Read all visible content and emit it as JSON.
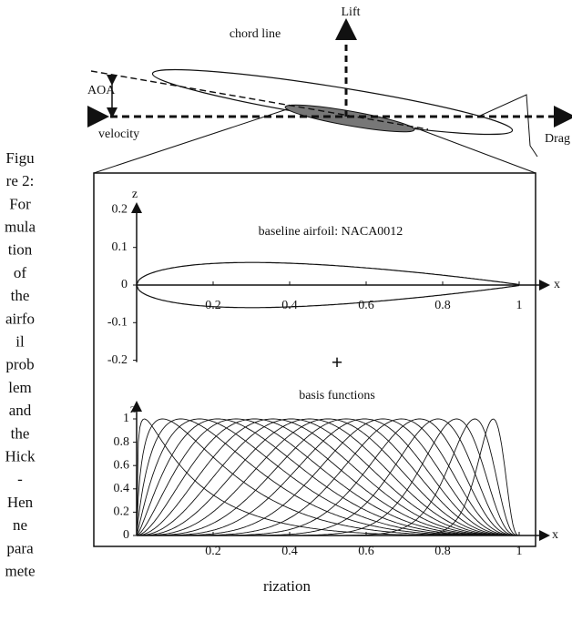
{
  "caption": {
    "fragments": [
      "Figu",
      "re 2:",
      "For",
      "mula",
      "tion",
      "of",
      "the",
      "airfo",
      "il",
      "prob",
      "lem",
      "and",
      "the",
      "Hick",
      "-",
      "Hen",
      "ne",
      "para",
      "mete"
    ],
    "tail": "rization"
  },
  "diagram": {
    "lift": "Lift",
    "chord_line": "chord line",
    "aoa": "AOA",
    "velocity": "velocity",
    "drag": "Drag"
  },
  "baseline_plot": {
    "title": "baseline airfoil: NACA0012",
    "x_label": "x",
    "z_label": "z",
    "zticks": [
      0.2,
      0.1,
      0,
      -0.1,
      -0.2
    ],
    "xticks": [
      0.2,
      0.4,
      0.6,
      0.8,
      1
    ]
  },
  "plus": "+",
  "basis_plot": {
    "title": "basis functions",
    "x_label": "x",
    "z_label": "z",
    "zticks": [
      1,
      0.8,
      0.6,
      0.4,
      0.2,
      0
    ],
    "xticks": [
      0.2,
      0.4,
      0.6,
      0.8,
      1
    ]
  }
}
